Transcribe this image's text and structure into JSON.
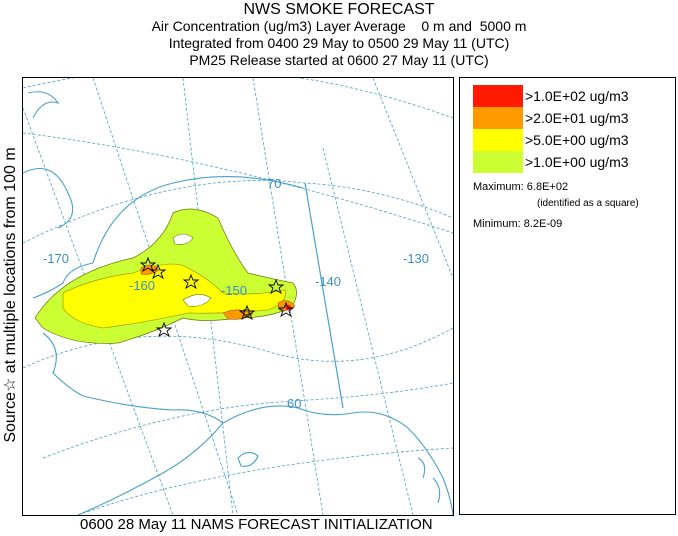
{
  "title": {
    "line1": "NWS SMOKE FORECAST",
    "line2": "Air Concentration (ug/m3) Layer Average    0 m and  5000 m",
    "line3": "Integrated from 0400 29 May to 0500 29 May 11 (UTC)",
    "line4": "PM25 Release started at 0600 27 May 11 (UTC)"
  },
  "side_label": "Source☆ at multiple locations     from   100 m",
  "map": {
    "lon_labels": [
      "-170",
      "-160",
      "-150",
      "-140",
      "-130"
    ],
    "lat_labels": [
      "70",
      "60"
    ],
    "colors": {
      "land_outline": "#4aa0c8",
      "graticule": "#4aa0c8",
      "label": "#3a8fc0"
    }
  },
  "legend": {
    "levels": [
      {
        "label": ">1.0E+02 ug/m3",
        "color": "#ff1a00"
      },
      {
        "label": ">2.0E+01 ug/m3",
        "color": "#ff9900"
      },
      {
        "label": ">5.0E+00 ug/m3",
        "color": "#ffff00"
      },
      {
        "label": ">1.0E+00 ug/m3",
        "color": "#ccff33"
      }
    ],
    "maximum": "Maximum: 6.8E+02",
    "maximum_note": "(identified as a square)",
    "minimum": "Minimum: 8.2E-09"
  },
  "footer": "0600 28 May 11 NAMS FORECAST INITIALIZATION"
}
